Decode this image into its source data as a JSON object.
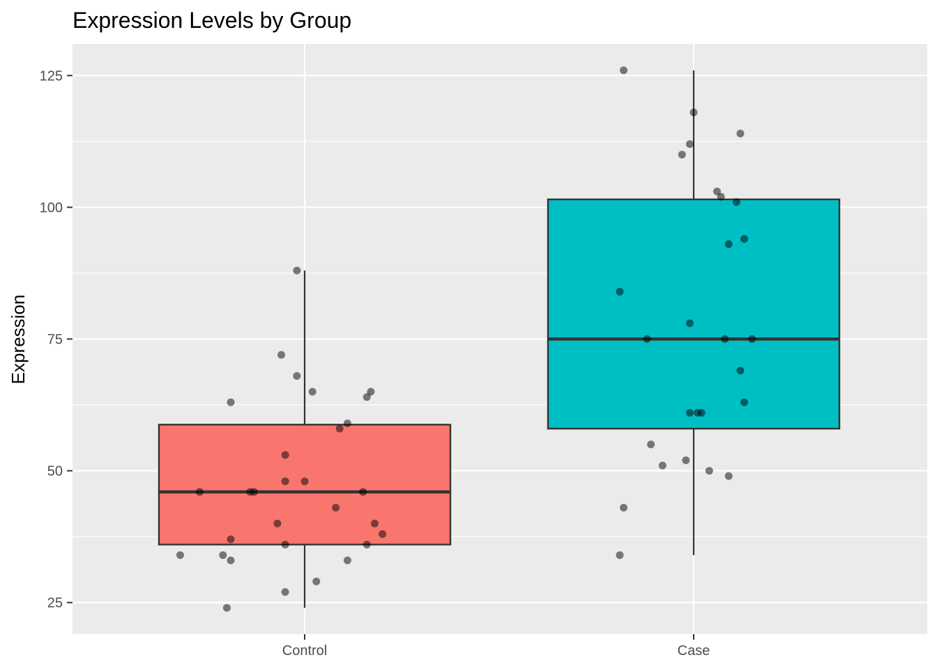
{
  "chart_data": {
    "type": "boxplot",
    "title": "Expression Levels by Group",
    "xlabel": "",
    "ylabel": "Expression",
    "categories": [
      "Control",
      "Case"
    ],
    "ylim": [
      19,
      131
    ],
    "yticks": [
      25,
      50,
      75,
      100,
      125
    ],
    "ytick_labels": [
      "25",
      "50",
      "75",
      "100",
      "125"
    ],
    "grid": true,
    "legend": "none",
    "colors": {
      "Control": "#F8766D",
      "Case": "#00BFC4",
      "panel": "#EBEBEB",
      "points": "#000000"
    },
    "boxes": [
      {
        "category": "Control",
        "whisker_low": 24,
        "q1": 36,
        "median": 46,
        "q3": 58.75,
        "whisker_high": 88
      },
      {
        "category": "Case",
        "whisker_low": 34,
        "q1": 58,
        "median": 75,
        "q3": 101.5,
        "whisker_high": 126
      }
    ],
    "points": [
      {
        "category": "Control",
        "x": 0.98,
        "y": 88
      },
      {
        "category": "Control",
        "x": 0.94,
        "y": 72
      },
      {
        "category": "Control",
        "x": 0.98,
        "y": 68
      },
      {
        "category": "Control",
        "x": 0.81,
        "y": 63
      },
      {
        "category": "Control",
        "x": 1.02,
        "y": 65
      },
      {
        "category": "Control",
        "x": 1.17,
        "y": 65
      },
      {
        "category": "Control",
        "x": 1.16,
        "y": 64
      },
      {
        "category": "Control",
        "x": 1.11,
        "y": 59
      },
      {
        "category": "Control",
        "x": 1.09,
        "y": 58
      },
      {
        "category": "Control",
        "x": 0.95,
        "y": 53
      },
      {
        "category": "Control",
        "x": 0.95,
        "y": 48
      },
      {
        "category": "Control",
        "x": 1.0,
        "y": 48
      },
      {
        "category": "Control",
        "x": 0.73,
        "y": 46
      },
      {
        "category": "Control",
        "x": 0.87,
        "y": 46
      },
      {
        "category": "Control",
        "x": 0.86,
        "y": 46
      },
      {
        "category": "Control",
        "x": 1.15,
        "y": 46
      },
      {
        "category": "Control",
        "x": 1.08,
        "y": 43
      },
      {
        "category": "Control",
        "x": 0.93,
        "y": 40
      },
      {
        "category": "Control",
        "x": 1.18,
        "y": 40
      },
      {
        "category": "Control",
        "x": 1.2,
        "y": 38
      },
      {
        "category": "Control",
        "x": 0.81,
        "y": 37
      },
      {
        "category": "Control",
        "x": 0.95,
        "y": 36
      },
      {
        "category": "Control",
        "x": 1.16,
        "y": 36
      },
      {
        "category": "Control",
        "x": 0.68,
        "y": 34
      },
      {
        "category": "Control",
        "x": 0.79,
        "y": 34
      },
      {
        "category": "Control",
        "x": 0.81,
        "y": 33
      },
      {
        "category": "Control",
        "x": 1.11,
        "y": 33
      },
      {
        "category": "Control",
        "x": 1.03,
        "y": 29
      },
      {
        "category": "Control",
        "x": 0.95,
        "y": 27
      },
      {
        "category": "Control",
        "x": 0.8,
        "y": 24
      },
      {
        "category": "Case",
        "x": 1.82,
        "y": 126
      },
      {
        "category": "Case",
        "x": 2.0,
        "y": 118
      },
      {
        "category": "Case",
        "x": 2.12,
        "y": 114
      },
      {
        "category": "Case",
        "x": 1.99,
        "y": 112
      },
      {
        "category": "Case",
        "x": 1.97,
        "y": 110
      },
      {
        "category": "Case",
        "x": 2.06,
        "y": 103
      },
      {
        "category": "Case",
        "x": 2.07,
        "y": 102
      },
      {
        "category": "Case",
        "x": 2.11,
        "y": 101
      },
      {
        "category": "Case",
        "x": 2.13,
        "y": 94
      },
      {
        "category": "Case",
        "x": 2.09,
        "y": 93
      },
      {
        "category": "Case",
        "x": 1.81,
        "y": 84
      },
      {
        "category": "Case",
        "x": 1.99,
        "y": 78
      },
      {
        "category": "Case",
        "x": 1.88,
        "y": 75
      },
      {
        "category": "Case",
        "x": 2.08,
        "y": 75
      },
      {
        "category": "Case",
        "x": 2.15,
        "y": 75
      },
      {
        "category": "Case",
        "x": 2.12,
        "y": 69
      },
      {
        "category": "Case",
        "x": 2.13,
        "y": 63
      },
      {
        "category": "Case",
        "x": 1.99,
        "y": 61
      },
      {
        "category": "Case",
        "x": 2.01,
        "y": 61
      },
      {
        "category": "Case",
        "x": 2.02,
        "y": 61
      },
      {
        "category": "Case",
        "x": 1.89,
        "y": 55
      },
      {
        "category": "Case",
        "x": 1.98,
        "y": 52
      },
      {
        "category": "Case",
        "x": 1.92,
        "y": 51
      },
      {
        "category": "Case",
        "x": 2.04,
        "y": 50
      },
      {
        "category": "Case",
        "x": 2.09,
        "y": 49
      },
      {
        "category": "Case",
        "x": 1.82,
        "y": 43
      },
      {
        "category": "Case",
        "x": 1.81,
        "y": 34
      }
    ]
  }
}
